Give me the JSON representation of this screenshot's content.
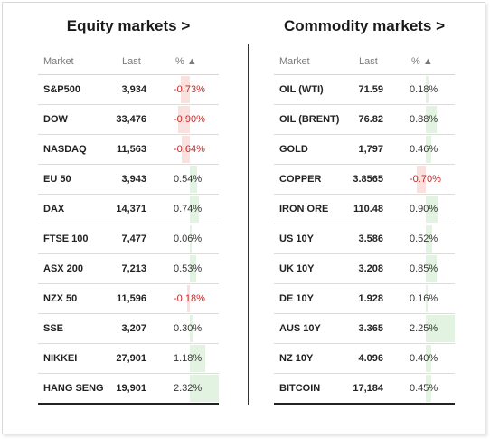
{
  "equity": {
    "title": "Equity markets >",
    "headers": {
      "market": "Market",
      "last": "Last",
      "pct": "% ▲"
    },
    "rows": [
      {
        "name": "S&P500",
        "last": "3,934",
        "pct": "-0.73%",
        "value": -0.73
      },
      {
        "name": "DOW",
        "last": "33,476",
        "pct": "-0.90%",
        "value": -0.9
      },
      {
        "name": "NASDAQ",
        "last": "11,563",
        "pct": "-0.64%",
        "value": -0.64
      },
      {
        "name": "EU 50",
        "last": "3,943",
        "pct": "0.54%",
        "value": 0.54
      },
      {
        "name": "DAX",
        "last": "14,371",
        "pct": "0.74%",
        "value": 0.74
      },
      {
        "name": "FTSE 100",
        "last": "7,477",
        "pct": "0.06%",
        "value": 0.06
      },
      {
        "name": "ASX 200",
        "last": "7,213",
        "pct": "0.53%",
        "value": 0.53
      },
      {
        "name": "NZX 50",
        "last": "11,596",
        "pct": "-0.18%",
        "value": -0.18
      },
      {
        "name": "SSE",
        "last": "3,207",
        "pct": "0.30%",
        "value": 0.3
      },
      {
        "name": "NIKKEI",
        "last": "27,901",
        "pct": "1.18%",
        "value": 1.18
      },
      {
        "name": "HANG SENG",
        "last": "19,901",
        "pct": "2.32%",
        "value": 2.32
      }
    ]
  },
  "commodity": {
    "title": "Commodity markets >",
    "headers": {
      "market": "Market",
      "last": "Last",
      "pct": "% ▲"
    },
    "rows": [
      {
        "name": "OIL (WTI)",
        "last": "71.59",
        "pct": "0.18%",
        "value": 0.18
      },
      {
        "name": "OIL (BRENT)",
        "last": "76.82",
        "pct": "0.88%",
        "value": 0.88
      },
      {
        "name": "GOLD",
        "last": "1,797",
        "pct": "0.46%",
        "value": 0.46
      },
      {
        "name": "COPPER",
        "last": "3.8565",
        "pct": "-0.70%",
        "value": -0.7
      },
      {
        "name": "IRON ORE",
        "last": "110.48",
        "pct": "0.90%",
        "value": 0.9
      },
      {
        "name": "US 10Y",
        "last": "3.586",
        "pct": "0.52%",
        "value": 0.52
      },
      {
        "name": "UK 10Y",
        "last": "3.208",
        "pct": "0.85%",
        "value": 0.85
      },
      {
        "name": "DE 10Y",
        "last": "1.928",
        "pct": "0.16%",
        "value": 0.16
      },
      {
        "name": "AUS 10Y",
        "last": "3.365",
        "pct": "2.25%",
        "value": 2.25
      },
      {
        "name": "NZ 10Y",
        "last": "4.096",
        "pct": "0.40%",
        "value": 0.4
      },
      {
        "name": "BITCOIN",
        "last": "17,184",
        "pct": "0.45%",
        "value": 0.45
      }
    ]
  },
  "colors": {
    "positive_bar": "#e3f3e1",
    "negative_bar": "#fbe1dd",
    "negative_text": "#c62828"
  }
}
